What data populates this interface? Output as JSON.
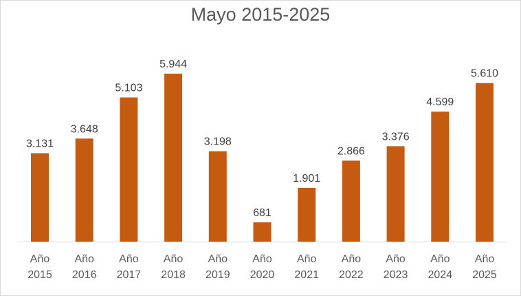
{
  "chart_data": {
    "type": "bar",
    "title": "Mayo 2015-2025",
    "xlabel": "",
    "ylabel": "",
    "categories": [
      [
        "Año",
        "2015"
      ],
      [
        "Año",
        "2016"
      ],
      [
        "Año",
        "2017"
      ],
      [
        "Año",
        "2018"
      ],
      [
        "Año",
        "2019"
      ],
      [
        "Año",
        "2020"
      ],
      [
        "Año",
        "2021"
      ],
      [
        "Año",
        "2022"
      ],
      [
        "Año",
        "2023"
      ],
      [
        "Año",
        "2024"
      ],
      [
        "Año",
        "2025"
      ]
    ],
    "values": [
      3131,
      3648,
      5103,
      5944,
      3198,
      681,
      1901,
      2866,
      3376,
      4599,
      5610
    ],
    "value_labels": [
      "3.131",
      "3.648",
      "5.103",
      "5.944",
      "3.198",
      "681",
      "1.901",
      "2.866",
      "3.376",
      "4.599",
      "5.610"
    ],
    "ylim": [
      0,
      5944
    ],
    "grid": false,
    "legend": "none",
    "bar_color": "#C55A11",
    "axis_color": "#D9D9D9"
  }
}
